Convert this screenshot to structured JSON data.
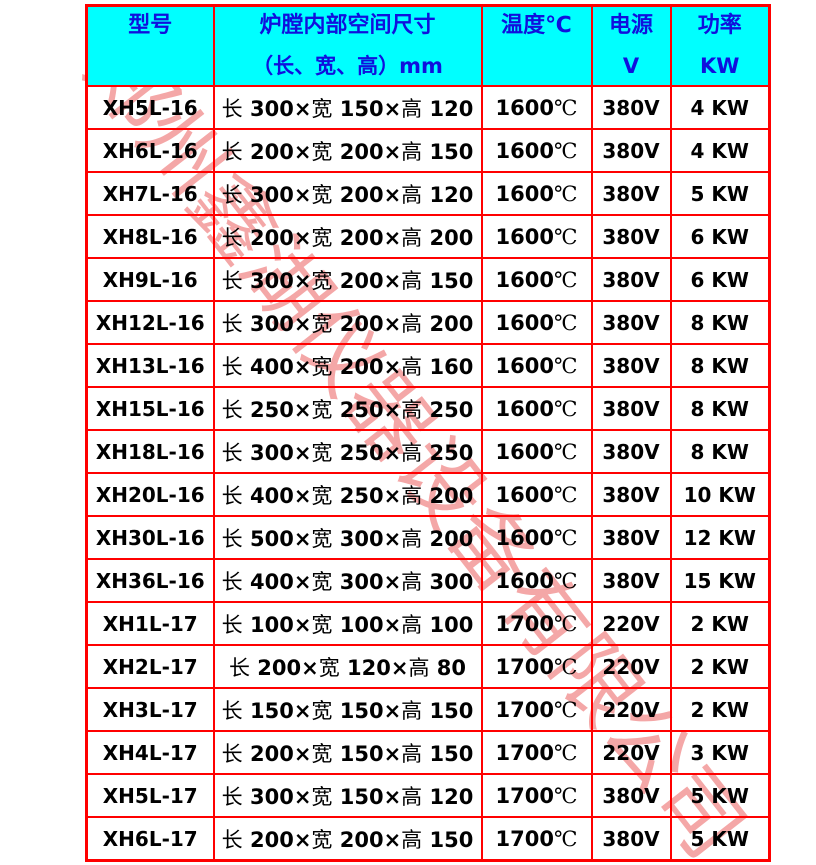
{
  "watermark": {
    "text": "郑州鑫湖仪器设备有限公司"
  },
  "colors": {
    "border": "#FF0000",
    "header_bg": "#00FFFF",
    "header_text": "#1010DD",
    "body_text": "#000000",
    "watermark": "rgba(235,95,95,0.55)"
  },
  "table": {
    "columns": [
      {
        "id": "model",
        "line1": "型号",
        "line2": ""
      },
      {
        "id": "dimensions",
        "line1": "炉膛内部空间尺寸",
        "line2": "（长、宽、高）mm"
      },
      {
        "id": "temperature",
        "line1": "温度℃",
        "line2": ""
      },
      {
        "id": "voltage",
        "line1": "电源",
        "line2": "V"
      },
      {
        "id": "power",
        "line1": "功率",
        "line2": "KW"
      }
    ],
    "rows": [
      [
        "XH5L-16",
        "长 300×宽 150×高 120",
        "1600℃",
        "380V",
        "4 KW"
      ],
      [
        "XH6L-16",
        "长 200×宽 200×高 150",
        "1600℃",
        "380V",
        "4 KW"
      ],
      [
        "XH7L-16",
        "长 300×宽 200×高 120",
        "1600℃",
        "380V",
        "5 KW"
      ],
      [
        "XH8L-16",
        "长 200×宽 200×高 200",
        "1600℃",
        "380V",
        "6 KW"
      ],
      [
        "XH9L-16",
        "长 300×宽 200×高 150",
        "1600℃",
        "380V",
        "6 KW"
      ],
      [
        "XH12L-16",
        "长 300×宽 200×高 200",
        "1600℃",
        "380V",
        "8 KW"
      ],
      [
        "XH13L-16",
        "长 400×宽 200×高 160",
        "1600℃",
        "380V",
        "8 KW"
      ],
      [
        "XH15L-16",
        "长 250×宽 250×高 250",
        "1600℃",
        "380V",
        "8 KW"
      ],
      [
        "XH18L-16",
        "长 300×宽 250×高 250",
        "1600℃",
        "380V",
        "8 KW"
      ],
      [
        "XH20L-16",
        "长 400×宽 250×高 200",
        "1600℃",
        "380V",
        "10 KW"
      ],
      [
        "XH30L-16",
        "长 500×宽 300×高 200",
        "1600℃",
        "380V",
        "12 KW"
      ],
      [
        "XH36L-16",
        "长 400×宽 300×高 300",
        "1600℃",
        "380V",
        "15 KW"
      ],
      [
        "XH1L-17",
        "长 100×宽 100×高 100",
        "1700℃",
        "220V",
        "2 KW"
      ],
      [
        "XH2L-17",
        "长 200×宽 120×高 80",
        "1700℃",
        "220V",
        "2 KW"
      ],
      [
        "XH3L-17",
        "长 150×宽 150×高 150",
        "1700℃",
        "220V",
        "2 KW"
      ],
      [
        "XH4L-17",
        "长 200×宽 150×高 150",
        "1700℃",
        "220V",
        "3 KW"
      ],
      [
        "XH5L-17",
        "长 300×宽 150×高 120",
        "1700℃",
        "380V",
        "5 KW"
      ],
      [
        "XH6L-17",
        "长 200×宽 200×高 150",
        "1700℃",
        "380V",
        "5 KW"
      ]
    ]
  }
}
